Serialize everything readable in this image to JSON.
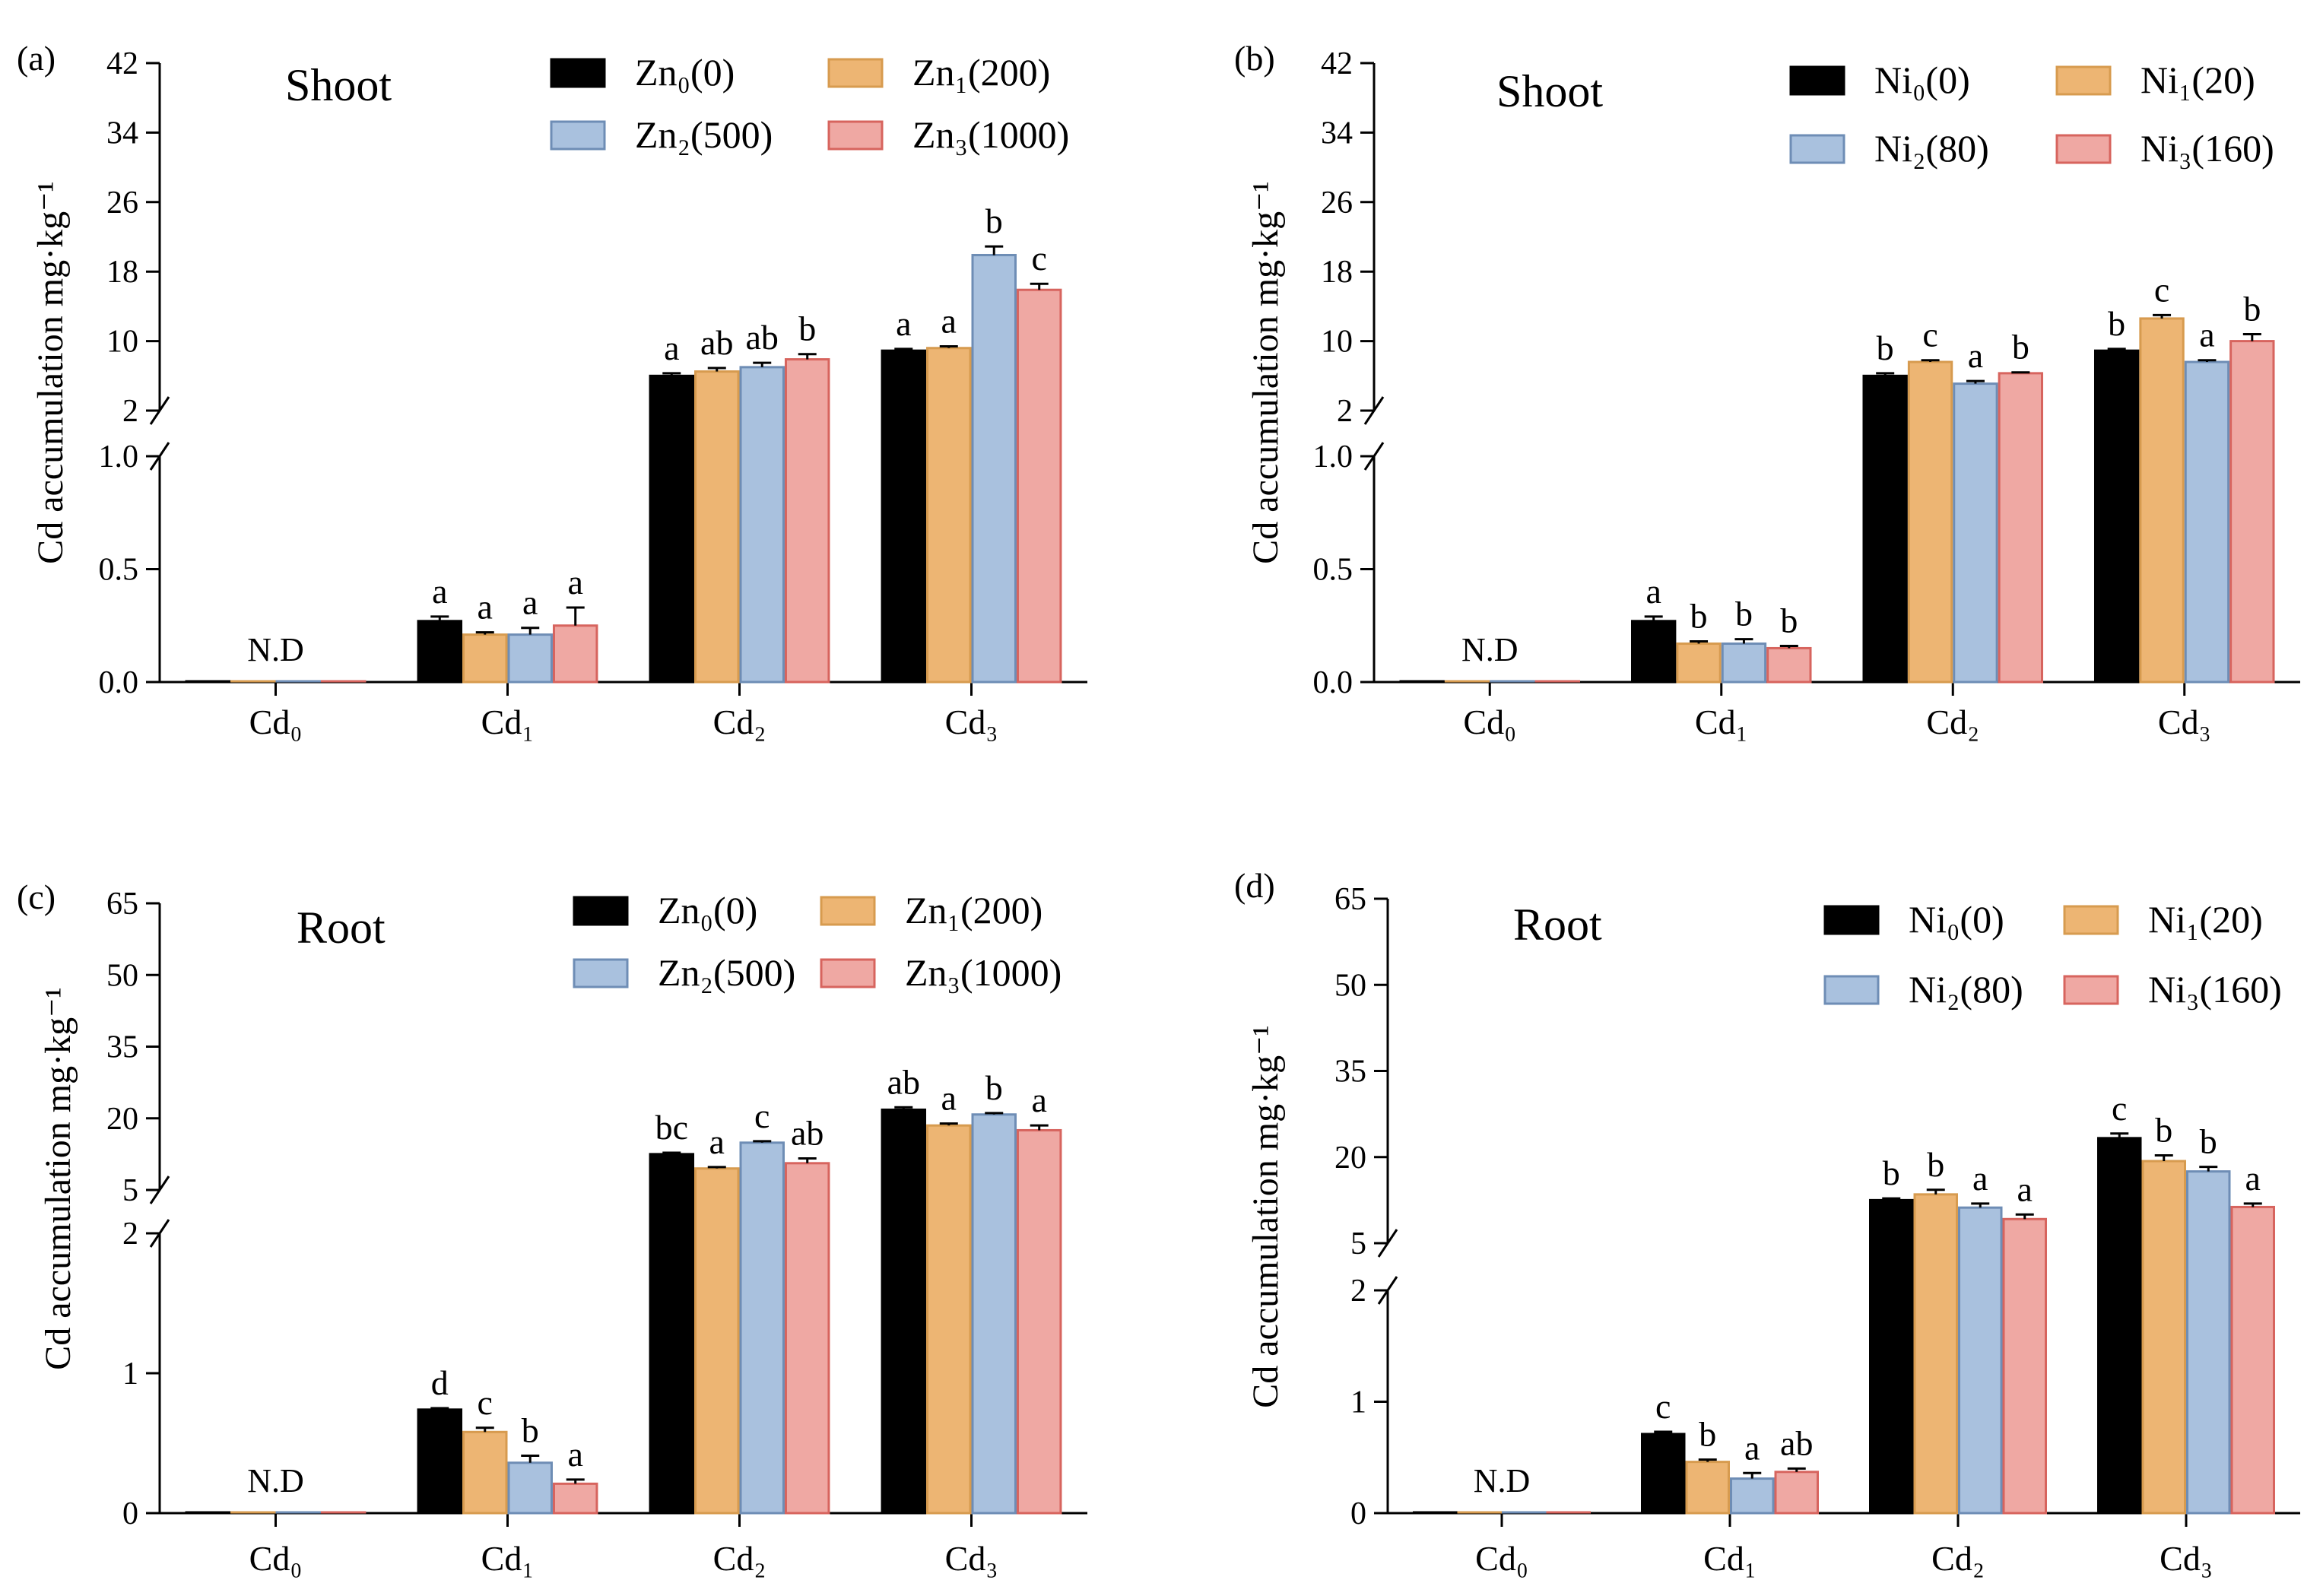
{
  "figure": {
    "colors": {
      "series0": "#000000",
      "series1": "#EDB573",
      "series1_edge": "#D79B4F",
      "series2": "#A9C1DE",
      "series2_edge": "#6E8DB5",
      "series3": "#EFA8A3",
      "series3_edge": "#D7645E"
    }
  },
  "chart_data": [
    {
      "id": "a",
      "panel_letter": "(a)",
      "type": "bar",
      "title": "Shoot",
      "ylabel": "Cd accumulation mg·kg⁻¹",
      "categories": [
        "Cd₀",
        "Cd₁",
        "Cd₂",
        "Cd₃"
      ],
      "axis_break": true,
      "lower_ylim": [
        0,
        1.0
      ],
      "lower_ticks": [
        "0.0",
        "0.5",
        "1.0"
      ],
      "upper_ylim": [
        2,
        42
      ],
      "upper_ticks": [
        "2",
        "10",
        "18",
        "26",
        "34",
        "42"
      ],
      "series": [
        {
          "name": "Zn₀(0)",
          "values": [
            0,
            0.27,
            6.0,
            8.9
          ],
          "errors": [
            0,
            0.02,
            0.3,
            0.2
          ],
          "labels": [
            "",
            "a",
            "a",
            "a"
          ]
        },
        {
          "name": "Zn₁(200)",
          "values": [
            0,
            0.21,
            6.5,
            9.2
          ],
          "errors": [
            0,
            0.01,
            0.4,
            0.2
          ],
          "labels": [
            "",
            "a",
            "ab",
            "a"
          ]
        },
        {
          "name": "Zn₂(500)",
          "values": [
            0,
            0.21,
            7.0,
            19.9
          ],
          "errors": [
            0,
            0.03,
            0.5,
            1.0
          ],
          "labels": [
            "",
            "a",
            "ab",
            "b"
          ]
        },
        {
          "name": "Zn₃(1000)",
          "values": [
            0,
            0.25,
            7.9,
            15.9
          ],
          "errors": [
            0,
            0.08,
            0.6,
            0.7
          ],
          "labels": [
            "",
            "a",
            "b",
            "c"
          ]
        }
      ],
      "annotation": "N.D"
    },
    {
      "id": "b",
      "panel_letter": "(b)",
      "type": "bar",
      "title": "Shoot",
      "ylabel": "Cd accumulation mg·kg⁻¹",
      "categories": [
        "Cd₀",
        "Cd₁",
        "Cd₂",
        "Cd₃"
      ],
      "axis_break": true,
      "lower_ylim": [
        0,
        1.0
      ],
      "lower_ticks": [
        "0.0",
        "0.5",
        "1.0"
      ],
      "upper_ylim": [
        2,
        42
      ],
      "upper_ticks": [
        "2",
        "10",
        "18",
        "26",
        "34",
        "42"
      ],
      "series": [
        {
          "name": "Ni₀(0)",
          "values": [
            0,
            0.27,
            6.0,
            8.9
          ],
          "errors": [
            0,
            0.02,
            0.3,
            0.2
          ],
          "labels": [
            "",
            "a",
            "b",
            "b"
          ]
        },
        {
          "name": "Ni₁(20)",
          "values": [
            0,
            0.17,
            7.6,
            12.6
          ],
          "errors": [
            0,
            0.01,
            0.2,
            0.4
          ],
          "labels": [
            "",
            "b",
            "c",
            "c"
          ]
        },
        {
          "name": "Ni₂(80)",
          "values": [
            0,
            0.17,
            5.1,
            7.6
          ],
          "errors": [
            0,
            0.02,
            0.3,
            0.2
          ],
          "labels": [
            "",
            "b",
            "a",
            "a"
          ]
        },
        {
          "name": "Ni₃(160)",
          "values": [
            0,
            0.15,
            6.3,
            10.0
          ],
          "errors": [
            0,
            0.01,
            0.1,
            0.8
          ],
          "labels": [
            "",
            "b",
            "b",
            "b"
          ]
        }
      ],
      "annotation": "N.D"
    },
    {
      "id": "c",
      "panel_letter": "(c)",
      "type": "bar",
      "title": "Root",
      "ylabel": "Cd accumulation mg·kg⁻¹",
      "categories": [
        "Cd₀",
        "Cd₁",
        "Cd₂",
        "Cd₃"
      ],
      "axis_break": true,
      "lower_ylim": [
        0,
        2
      ],
      "lower_ticks": [
        "0",
        "1",
        "2"
      ],
      "upper_ylim": [
        5,
        65
      ],
      "upper_ticks": [
        "5",
        "20",
        "35",
        "50",
        "65"
      ],
      "series": [
        {
          "name": "Zn₀(0)",
          "values": [
            0,
            0.74,
            12.5,
            21.8
          ],
          "errors": [
            0,
            0.01,
            0.3,
            0.5
          ],
          "labels": [
            "",
            "d",
            "bc",
            "ab"
          ]
        },
        {
          "name": "Zn₁(200)",
          "values": [
            0,
            0.58,
            9.5,
            18.5
          ],
          "errors": [
            0,
            0.03,
            0.3,
            0.4
          ],
          "labels": [
            "",
            "c",
            "a",
            "a"
          ]
        },
        {
          "name": "Zn₂(500)",
          "values": [
            0,
            0.36,
            14.9,
            20.8
          ],
          "errors": [
            0,
            0.05,
            0.3,
            0.3
          ],
          "labels": [
            "",
            "b",
            "c",
            "b"
          ]
        },
        {
          "name": "Zn₃(1000)",
          "values": [
            0,
            0.21,
            10.6,
            17.5
          ],
          "errors": [
            0,
            0.03,
            1.0,
            1.0
          ],
          "labels": [
            "",
            "a",
            "ab",
            "a"
          ]
        }
      ],
      "annotation": "N.D"
    },
    {
      "id": "d",
      "panel_letter": "(d)",
      "type": "bar",
      "title": "Root",
      "ylabel": "Cd accumulation mg·kg⁻¹",
      "categories": [
        "Cd₀",
        "Cd₁",
        "Cd₂",
        "Cd₃"
      ],
      "axis_break": true,
      "lower_ylim": [
        0,
        2
      ],
      "lower_ticks": [
        "0",
        "1",
        "2"
      ],
      "upper_ylim": [
        5,
        65
      ],
      "upper_ticks": [
        "5",
        "20",
        "35",
        "50",
        "65"
      ],
      "series": [
        {
          "name": "Ni₀(0)",
          "values": [
            0,
            0.71,
            12.5,
            23.3
          ],
          "errors": [
            0,
            0.02,
            0.3,
            0.8
          ],
          "labels": [
            "",
            "c",
            "b",
            "c"
          ]
        },
        {
          "name": "Ni₁(20)",
          "values": [
            0,
            0.46,
            13.5,
            19.3
          ],
          "errors": [
            0,
            0.02,
            0.8,
            1.0
          ],
          "labels": [
            "",
            "b",
            "b",
            "b"
          ]
        },
        {
          "name": "Ni₂(80)",
          "values": [
            0,
            0.31,
            11.2,
            17.5
          ],
          "errors": [
            0,
            0.05,
            0.7,
            0.8
          ],
          "labels": [
            "",
            "a",
            "a",
            "b"
          ]
        },
        {
          "name": "Ni₃(160)",
          "values": [
            0,
            0.37,
            9.2,
            11.3
          ],
          "errors": [
            0,
            0.03,
            0.8,
            0.6
          ],
          "labels": [
            "",
            "ab",
            "a",
            "a"
          ]
        }
      ],
      "annotation": "N.D"
    }
  ]
}
